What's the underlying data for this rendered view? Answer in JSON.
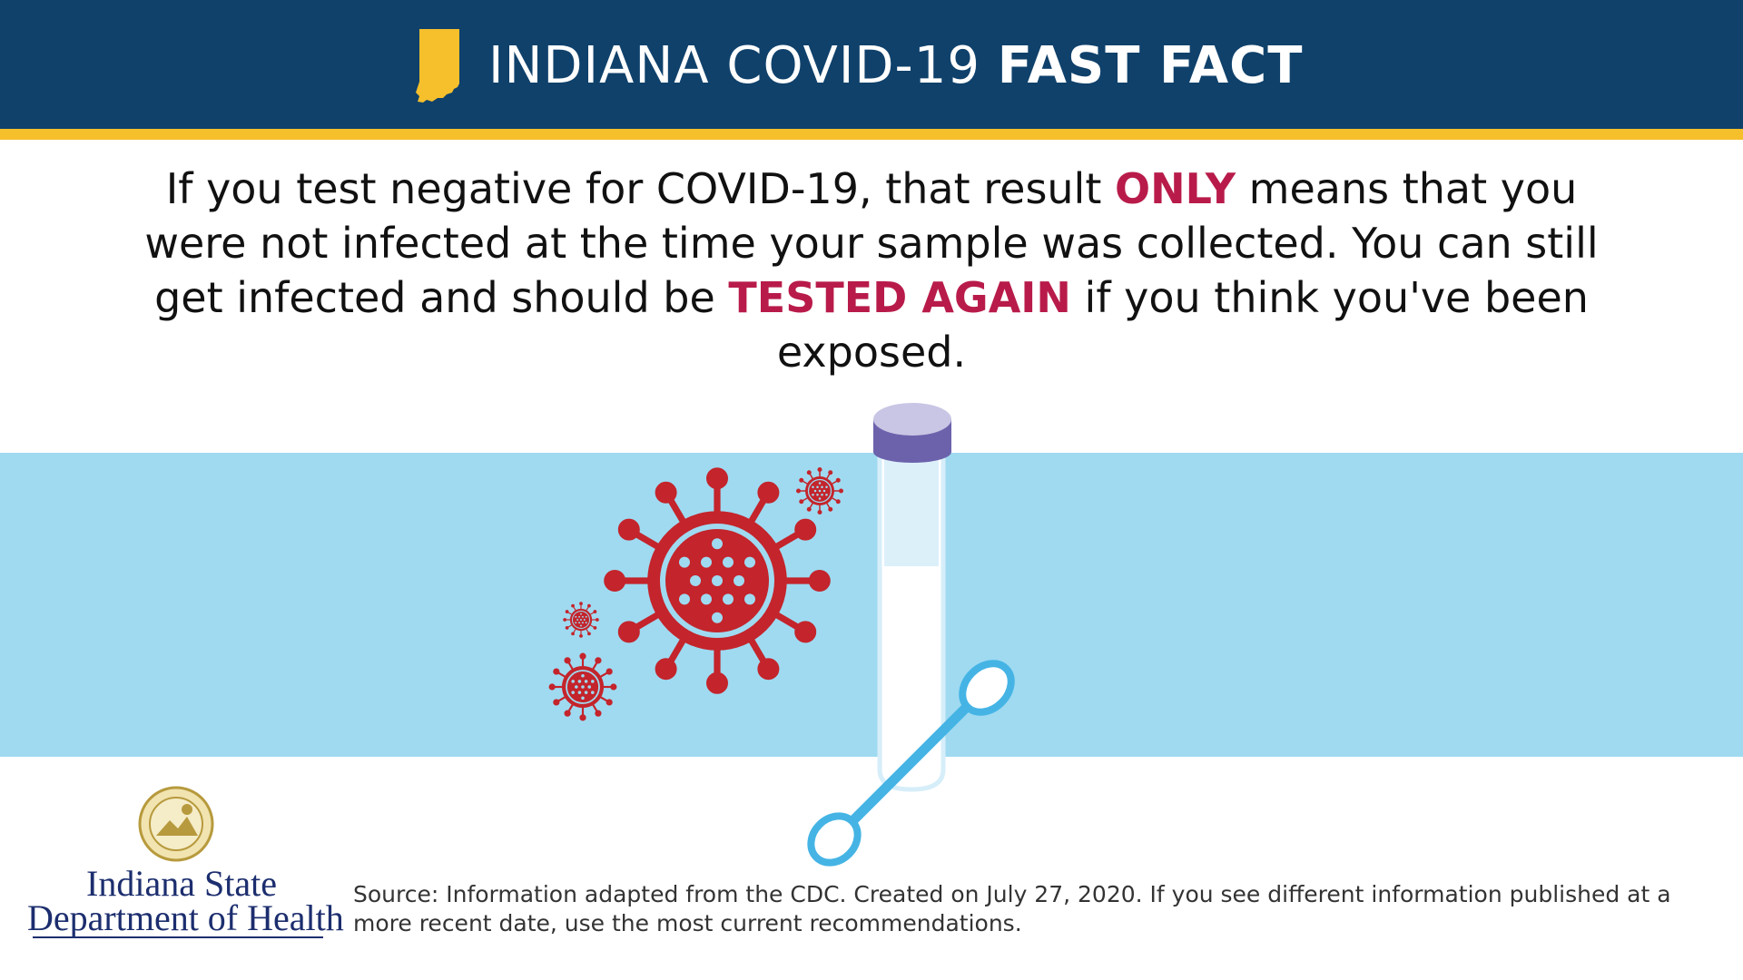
{
  "header": {
    "title_regular": "INDIANA COVID-19 ",
    "title_bold": "FAST FACT",
    "icon": "indiana-state-shape-icon",
    "background_color": "#0f416b",
    "stripe_color": "#f6bf2c"
  },
  "message": {
    "part1": "If you test negative for COVID-19, that result ",
    "emphasis1": "ONLY",
    "part2": " means that you were not infected at the time your sample was collected. You can still get infected and should be ",
    "emphasis2": "TESTED AGAIN",
    "part3": " if you think you've been exposed.",
    "emphasis_color": "#b81b4a"
  },
  "illustration": {
    "band_color": "#9fdaf1",
    "icons": [
      "coronavirus-icon",
      "test-tube-icon",
      "swab-icon"
    ],
    "virus_color": "#c4242b",
    "tube_cap_color": "#6c62ac",
    "swab_color": "#45b4e5"
  },
  "footer": {
    "logo_line1": "Indiana State",
    "logo_line2": "Department of Health",
    "seal_icon": "state-seal-icon",
    "source_text": "Source: Information adapted from the CDC. Created on July 27, 2020. If you see different information published at a more recent date, use the most current recommendations."
  }
}
